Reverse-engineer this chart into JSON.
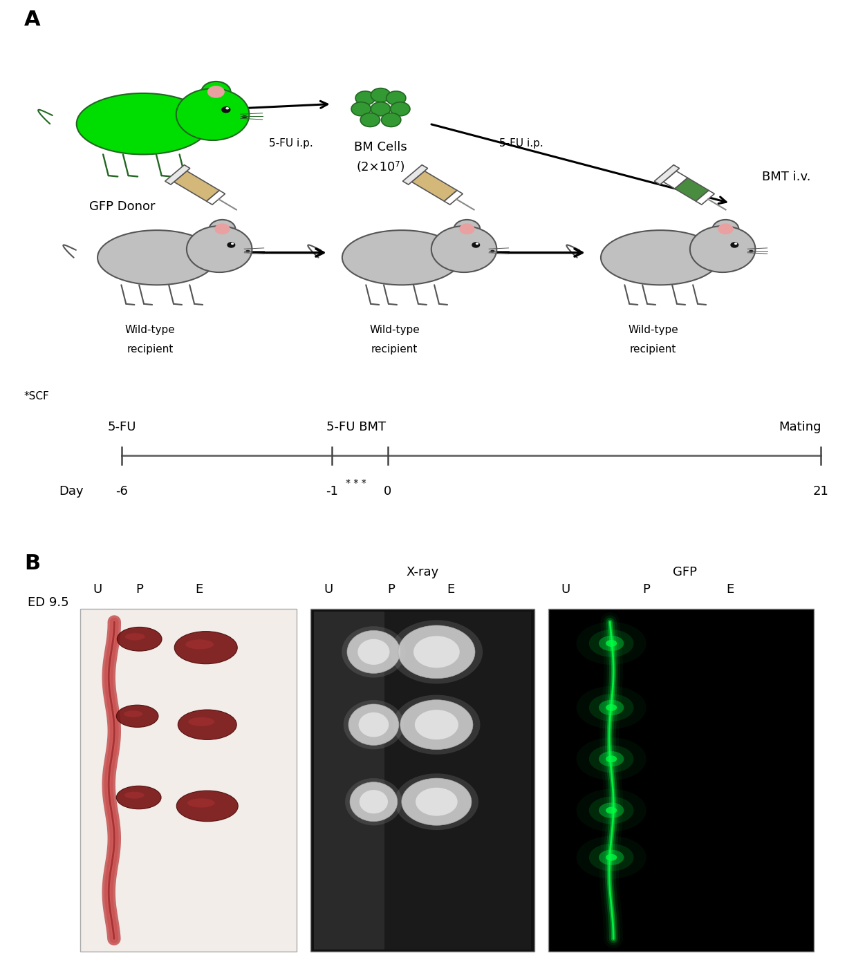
{
  "panel_A_label": "A",
  "panel_B_label": "B",
  "gfp_donor_label": "GFP Donor",
  "bm_cells_label_1": "BM Cells",
  "bm_cells_label_2": "(2×10⁷)",
  "bmt_iv_label": "BMT i.v.",
  "5fu_ip_label": "5-FU i.p.",
  "wt_line1": "Wild-type",
  "wt_line2": "recipient",
  "scf_label": "*SCF",
  "tl_5fu": "5-FU",
  "tl_5fu_bmt": "5-FU BMT",
  "tl_mating": "Mating",
  "tl_asterisks": "* * *",
  "day_label": "Day",
  "day_neg6": "-6",
  "day_neg1": "-1",
  "day_0": "0",
  "day_21": "21",
  "ed_label": "ED 9.5",
  "xray_label": "X-ray",
  "gfp_label": "GFP",
  "u_label": "U",
  "p_label": "P",
  "e_label": "E",
  "green_bright": "#00dd00",
  "green_mid": "#339933",
  "green_dark": "#226622",
  "gray_mouse": "#c0c0c0",
  "gray_outline": "#555555",
  "tan_syringe": "#d4b87a",
  "green_syringe": "#4a8c3f",
  "white_color": "#ffffff",
  "black_color": "#000000",
  "figure_bg": "#ffffff",
  "timeline_color": "#888888",
  "font_panel": 22,
  "font_label": 15,
  "font_body": 13,
  "font_small": 11
}
